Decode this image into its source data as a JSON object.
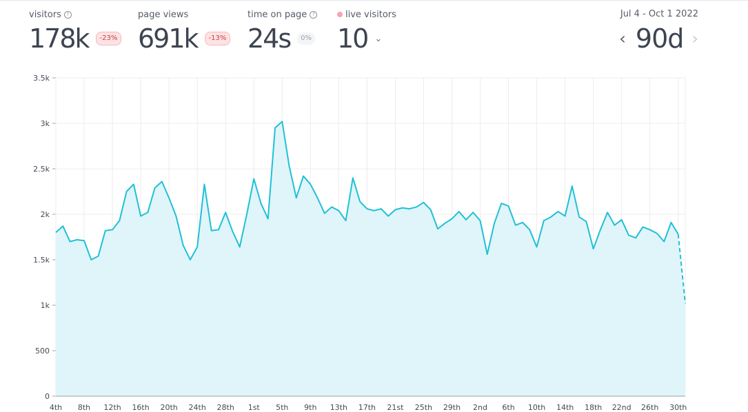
{
  "stats": {
    "visitors": {
      "label": "visitors",
      "value": "178k",
      "change": "-23%"
    },
    "page_views": {
      "label": "page views",
      "value": "691k",
      "change": "-13%"
    },
    "time_on_page": {
      "label": "time on page",
      "value": "24s",
      "change": "0%"
    },
    "live_visitors": {
      "label": "live visitors",
      "value": "10"
    }
  },
  "range": {
    "dates": "Jul 4 - Oct 1 2022",
    "period": "90d"
  },
  "icons": {
    "help": "help-circle-icon",
    "live": "live-dot-icon",
    "prev": "chevron-left-icon",
    "next": "chevron-right-icon",
    "expand": "chevron-down-icon"
  },
  "colors": {
    "line": "#1fc0d6",
    "fill": "#dff5f9",
    "negative": "#d33a46"
  },
  "chart_data": {
    "type": "area",
    "title": "",
    "xlabel": "",
    "ylabel": "",
    "ylim": [
      0,
      3500
    ],
    "yticks": [
      0,
      500,
      1000,
      1500,
      2000,
      2500,
      3000,
      3500
    ],
    "ytick_labels": [
      "0",
      "500",
      "1k",
      "1.5k",
      "2k",
      "2.5k",
      "3k",
      "3.5k"
    ],
    "xtick_labels": [
      "4th",
      "8th",
      "12th",
      "16th",
      "20th",
      "24th",
      "28th",
      "1st",
      "5th",
      "9th",
      "13th",
      "17th",
      "21st",
      "25th",
      "29th",
      "2nd",
      "6th",
      "10th",
      "14th",
      "18th",
      "22nd",
      "26th",
      "30th"
    ],
    "grid": true,
    "series": [
      {
        "values": [
          1800,
          1870,
          1700,
          1720,
          1710,
          1500,
          1540,
          1820,
          1830,
          1930,
          2250,
          2330,
          1980,
          2020,
          2290,
          2360,
          2180,
          1980,
          1660,
          1500,
          1640,
          2330,
          1820,
          1830,
          2020,
          1810,
          1640,
          2000,
          2390,
          2120,
          1950,
          2950,
          3020,
          2530,
          2180,
          2420,
          2330,
          2180,
          2010,
          2080,
          2040,
          1930,
          2400,
          2140,
          2060,
          2040,
          2060,
          1980,
          2050,
          2070,
          2060,
          2080,
          2130,
          2050,
          1840,
          1900,
          1950,
          2030,
          1940,
          2020,
          1930,
          1560,
          1900,
          2120,
          2090,
          1880,
          1910,
          1830,
          1640,
          1930,
          1970,
          2030,
          1980,
          2310,
          1970,
          1920,
          1620,
          1830,
          2020,
          1880,
          1940,
          1770,
          1740,
          1860,
          1830,
          1790,
          1700,
          1910,
          1780,
          1020
        ],
        "partial_last": true
      }
    ]
  }
}
